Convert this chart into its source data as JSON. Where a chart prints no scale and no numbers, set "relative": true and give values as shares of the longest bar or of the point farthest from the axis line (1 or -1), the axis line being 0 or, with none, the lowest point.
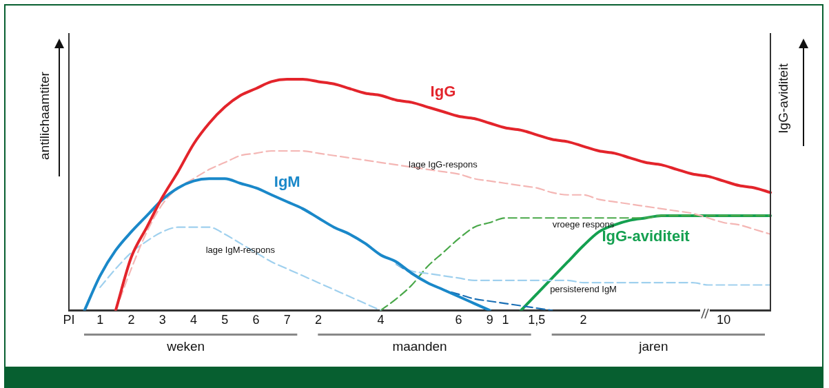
{
  "chart_data": {
    "type": "line",
    "relative": true,
    "ylabel": "antilichaamtiter",
    "y2label": "IgG-aviditeit",
    "legend": false,
    "grid": false,
    "marker": "none",
    "tick_labels": "x",
    "categories": [
      "PI",
      null,
      "1",
      null,
      "2",
      null,
      "3",
      null,
      "4",
      null,
      "5",
      null,
      "6",
      null,
      "7",
      null,
      "2",
      null,
      null,
      null,
      "4",
      null,
      null,
      null,
      null,
      "6",
      null,
      "9",
      "1",
      null,
      "1,5",
      null,
      null,
      "2",
      null,
      null,
      null,
      null,
      null,
      null,
      null,
      null,
      "10",
      null,
      null,
      null
    ],
    "series": [
      {
        "name": "IgG",
        "color": "#e3242b",
        "line_style": "solid",
        "values": [
          null,
          null,
          null,
          0,
          0.23,
          0.36,
          0.49,
          0.6,
          0.72,
          0.81,
          0.88,
          0.93,
          0.96,
          0.99,
          1,
          1,
          0.99,
          0.98,
          0.96,
          0.94,
          0.93,
          0.91,
          0.9,
          0.88,
          0.86,
          0.84,
          0.83,
          0.81,
          0.79,
          0.78,
          0.76,
          0.74,
          0.73,
          0.71,
          0.69,
          0.68,
          0.66,
          0.64,
          0.63,
          0.61,
          0.59,
          0.58,
          0.56,
          0.54,
          0.53,
          0.51
        ]
      },
      {
        "name": "IgM",
        "color": "#1a88c9",
        "line_style": "solid",
        "values": [
          null,
          0,
          0.15,
          0.26,
          0.34,
          0.41,
          0.48,
          0.53,
          0.56,
          0.57,
          0.57,
          0.55,
          0.53,
          0.5,
          0.47,
          0.44,
          0.4,
          0.36,
          0.33,
          0.29,
          0.24,
          0.21,
          0.16,
          0.12,
          0.09,
          0.06,
          0.03,
          0,
          null,
          null,
          null,
          null,
          null,
          null,
          null,
          null,
          null,
          null,
          null,
          null,
          null,
          null,
          null,
          null,
          null,
          null
        ]
      },
      {
        "name": "lage IgG-respons",
        "color": "#f4b6b4",
        "line_style": "dashed",
        "values": [
          null,
          null,
          null,
          0,
          0.18,
          0.34,
          0.46,
          0.53,
          0.57,
          0.61,
          0.64,
          0.67,
          0.68,
          0.69,
          0.69,
          0.69,
          0.68,
          0.67,
          0.66,
          0.65,
          0.64,
          0.63,
          0.62,
          0.61,
          0.6,
          0.59,
          0.57,
          0.56,
          0.55,
          0.54,
          0.53,
          0.51,
          0.5,
          0.5,
          0.48,
          0.47,
          0.46,
          0.45,
          0.44,
          0.43,
          0.42,
          0.4,
          0.38,
          0.37,
          0.35,
          0.33
        ]
      },
      {
        "name": "lage IgM-respons",
        "color": "#9fd0ee",
        "line_style": "dashed",
        "values": [
          null,
          null,
          0.1,
          0.18,
          0.25,
          0.3,
          0.34,
          0.36,
          0.36,
          0.36,
          0.33,
          0.29,
          0.25,
          0.21,
          0.18,
          0.15,
          0.12,
          0.09,
          0.06,
          0.03,
          0,
          null,
          null,
          null,
          null,
          null,
          null,
          null,
          null,
          null,
          null,
          null,
          null,
          null,
          null,
          null,
          null,
          null,
          null,
          null,
          null,
          null,
          null,
          null,
          null,
          null
        ]
      },
      {
        "name": "persisterend IgM",
        "color": "#9fd0ee",
        "line_style": "dashed",
        "values": [
          null,
          null,
          null,
          null,
          null,
          null,
          null,
          null,
          null,
          null,
          null,
          null,
          null,
          null,
          null,
          null,
          null,
          null,
          null,
          null,
          null,
          0.2,
          0.17,
          0.16,
          0.15,
          0.14,
          0.13,
          0.13,
          0.13,
          0.13,
          0.13,
          0.13,
          0.13,
          0.12,
          0.12,
          0.12,
          0.12,
          0.12,
          0.12,
          0.12,
          0.12,
          0.11,
          0.11,
          0.11,
          0.11,
          0.11
        ]
      },
      {
        "color": "#1a6fb5",
        "line_style": "dashed",
        "values": [
          null,
          null,
          null,
          null,
          null,
          null,
          null,
          null,
          null,
          null,
          null,
          null,
          null,
          null,
          null,
          null,
          null,
          null,
          null,
          null,
          null,
          0.2,
          0.16,
          0.12,
          0.09,
          0.07,
          0.05,
          0.04,
          0.03,
          0.02,
          0.01,
          0,
          null,
          null,
          null,
          null,
          null,
          null,
          null,
          null,
          null,
          null,
          null,
          null,
          null,
          null
        ]
      },
      {
        "name": "vroege respons",
        "color": "#4aa84a",
        "line_style": "dashed",
        "values": [
          null,
          null,
          null,
          null,
          null,
          null,
          null,
          null,
          null,
          null,
          null,
          null,
          null,
          null,
          null,
          null,
          null,
          null,
          null,
          null,
          0,
          0.05,
          0.11,
          0.19,
          0.25,
          0.31,
          0.36,
          0.38,
          0.4,
          0.4,
          0.4,
          0.4,
          0.4,
          0.4,
          0.4,
          0.4,
          0.4,
          0.4,
          0.41,
          0.41,
          0.41,
          0.41,
          0.41,
          0.41,
          0.41,
          0.41
        ]
      },
      {
        "name": "IgG-aviditeit",
        "color": "#14a050",
        "line_style": "solid",
        "values": [
          null,
          null,
          null,
          null,
          null,
          null,
          null,
          null,
          null,
          null,
          null,
          null,
          null,
          null,
          null,
          null,
          null,
          null,
          null,
          null,
          null,
          null,
          null,
          null,
          null,
          null,
          null,
          null,
          null,
          0,
          0.07,
          0.14,
          0.21,
          0.28,
          0.34,
          0.37,
          0.39,
          0.4,
          0.41,
          0.41,
          0.41,
          0.41,
          0.41,
          0.41,
          0.41,
          0.41
        ]
      }
    ],
    "annotations": [
      "weken",
      "maanden",
      "jaren"
    ]
  }
}
